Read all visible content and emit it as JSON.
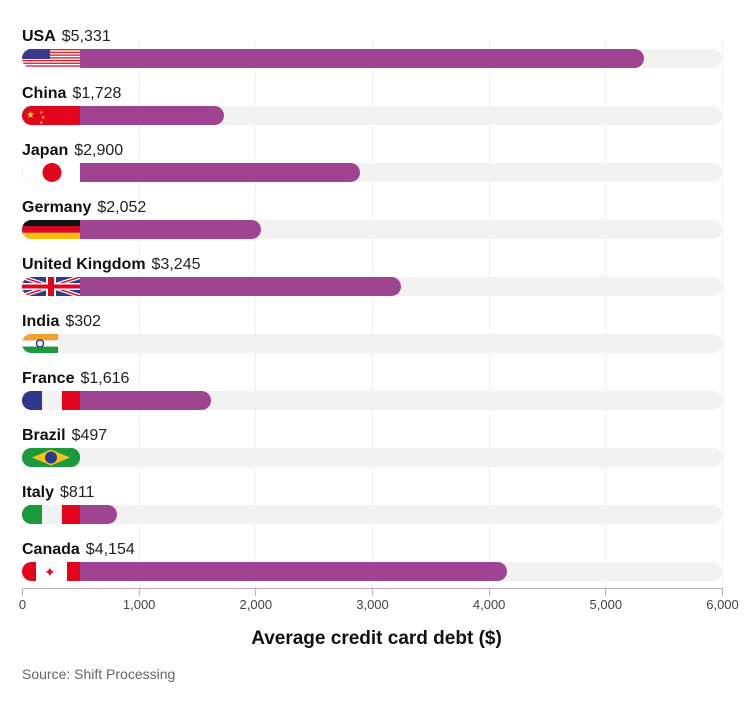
{
  "chart_data": {
    "type": "bar",
    "orientation": "horizontal",
    "categories": [
      "USA",
      "China",
      "Japan",
      "Germany",
      "United Kingdom",
      "India",
      "France",
      "Brazil",
      "Italy",
      "Canada"
    ],
    "values": [
      5331,
      1728,
      2900,
      2052,
      3245,
      302,
      1616,
      497,
      811,
      4154
    ],
    "value_labels": [
      "$5,331",
      "$1,728",
      "$2,900",
      "$2,052",
      "$3,245",
      "$302",
      "$1,616",
      "$497",
      "$811",
      "$4,154"
    ],
    "title": "",
    "xlabel": "Average credit card debt ($)",
    "ylabel": "",
    "xlim": [
      0,
      6000
    ],
    "xticks": [
      0,
      1000,
      2000,
      3000,
      4000,
      5000,
      6000
    ],
    "xtick_labels": [
      "0",
      "1,000",
      "2,000",
      "3,000",
      "4,000",
      "5,000",
      "6,000"
    ],
    "grid": true,
    "legend": null,
    "bar_color": "#9e4490",
    "track_color": "#f2f2f2",
    "annotations": [
      "Country flags shown at start of each bar"
    ]
  },
  "rows": [
    {
      "country": "USA",
      "value_label": "$5,331",
      "value": 5331,
      "flag": "us-flag"
    },
    {
      "country": "China",
      "value_label": "$1,728",
      "value": 1728,
      "flag": "china-flag"
    },
    {
      "country": "Japan",
      "value_label": "$2,900",
      "value": 2900,
      "flag": "japan-flag"
    },
    {
      "country": "Germany",
      "value_label": "$2,052",
      "value": 2052,
      "flag": "germany-flag"
    },
    {
      "country": "United Kingdom",
      "value_label": "$3,245",
      "value": 3245,
      "flag": "uk-flag"
    },
    {
      "country": "India",
      "value_label": "$302",
      "value": 302,
      "flag": "india-flag"
    },
    {
      "country": "France",
      "value_label": "$1,616",
      "value": 1616,
      "flag": "france-flag"
    },
    {
      "country": "Brazil",
      "value_label": "$497",
      "value": 497,
      "flag": "brazil-flag"
    },
    {
      "country": "Italy",
      "value_label": "$811",
      "value": 811,
      "flag": "italy-flag"
    },
    {
      "country": "Canada",
      "value_label": "$4,154",
      "value": 4154,
      "flag": "canada-flag"
    }
  ],
  "axis": {
    "ticks": [
      "0",
      "1,000",
      "2,000",
      "3,000",
      "4,000",
      "5,000",
      "6,000"
    ],
    "title": "Average credit card debt ($)"
  },
  "source": "Source: Shift Processing"
}
